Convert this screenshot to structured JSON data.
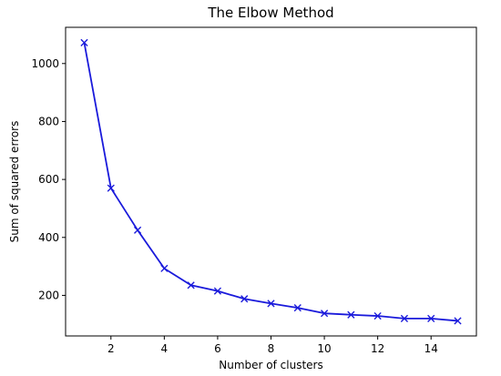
{
  "chart_data": {
    "type": "line",
    "title": "The Elbow Method",
    "xlabel": "Number of clusters",
    "ylabel": "Sum of squared errors",
    "xlim": [
      0.3,
      15.7
    ],
    "ylim": [
      60,
      1125
    ],
    "xticks": [
      2,
      4,
      6,
      8,
      10,
      12,
      14
    ],
    "yticks": [
      200,
      400,
      600,
      800,
      1000
    ],
    "grid": false,
    "marker": "x",
    "line_color": "#1a1adb",
    "series": [
      {
        "x": [
          1,
          2,
          3,
          4,
          5,
          6,
          7,
          8,
          9,
          10,
          11,
          12,
          13,
          14,
          15
        ],
        "values": [
          1072,
          570,
          425,
          293,
          235,
          215,
          188,
          172,
          157,
          138,
          133,
          129,
          120,
          120,
          112
        ]
      }
    ]
  }
}
